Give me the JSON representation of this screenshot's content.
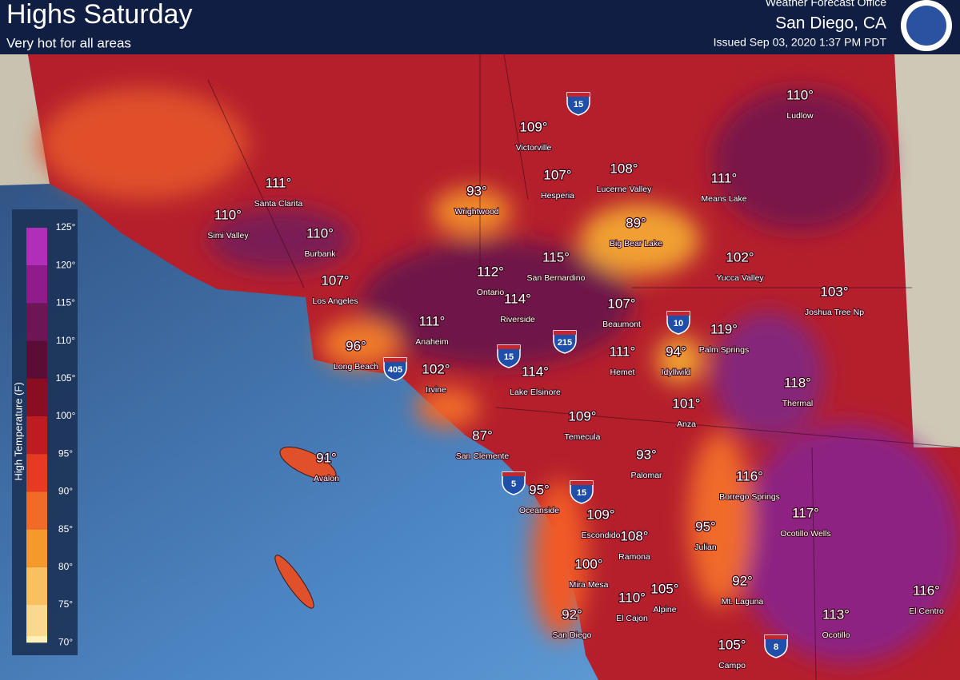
{
  "header": {
    "title": "Highs Saturday",
    "subtitle": "Very hot for all areas",
    "office": "Weather Forecast Office",
    "location": "San Diego, CA",
    "issued": "Issued Sep 03, 2020 1:37 PM PDT"
  },
  "legend": {
    "title": "High Temperature (F)",
    "labels": [
      "125°",
      "120°",
      "115°",
      "110°",
      "105°",
      "100°",
      "95°",
      "90°",
      "85°",
      "80°",
      "75°",
      "70°"
    ]
  },
  "cities": [
    {
      "temp": "110°",
      "name": "Ludlow"
    },
    {
      "temp": "109°",
      "name": "Victorville"
    },
    {
      "temp": "107°",
      "name": "Hesperia"
    },
    {
      "temp": "108°",
      "name": "Lucerne Valley"
    },
    {
      "temp": "111°",
      "name": "Means Lake"
    },
    {
      "temp": "111°",
      "name": "Santa Clarita"
    },
    {
      "temp": "110°",
      "name": "Simi Valley"
    },
    {
      "temp": "93°",
      "name": "Wrightwood"
    },
    {
      "temp": "89°",
      "name": "Big Bear Lake"
    },
    {
      "temp": "110°",
      "name": "Burbank"
    },
    {
      "temp": "115°",
      "name": "San Bernardino"
    },
    {
      "temp": "102°",
      "name": "Yucca Valley"
    },
    {
      "temp": "112°",
      "name": "Ontario"
    },
    {
      "temp": "107°",
      "name": "Los Angeles"
    },
    {
      "temp": "114°",
      "name": "Riverside"
    },
    {
      "temp": "103°",
      "name": "Joshua Tree Np"
    },
    {
      "temp": "107°",
      "name": "Beaumont"
    },
    {
      "temp": "119°",
      "name": "Palm Springs"
    },
    {
      "temp": "111°",
      "name": "Anaheim"
    },
    {
      "temp": "96°",
      "name": "Long Beach"
    },
    {
      "temp": "111°",
      "name": "Hemet"
    },
    {
      "temp": "94°",
      "name": "Idyllwild"
    },
    {
      "temp": "102°",
      "name": "Irvine"
    },
    {
      "temp": "114°",
      "name": "Lake Elsinore"
    },
    {
      "temp": "118°",
      "name": "Thermal"
    },
    {
      "temp": "101°",
      "name": "Anza"
    },
    {
      "temp": "109°",
      "name": "Temecula"
    },
    {
      "temp": "87°",
      "name": "San Clemente"
    },
    {
      "temp": "91°",
      "name": "Avalon"
    },
    {
      "temp": "93°",
      "name": "Palomar"
    },
    {
      "temp": "116°",
      "name": "Borrego Springs"
    },
    {
      "temp": "95°",
      "name": "Oceanside"
    },
    {
      "temp": "117°",
      "name": "Ocotillo Wells"
    },
    {
      "temp": "109°",
      "name": "Escondido"
    },
    {
      "temp": "108°",
      "name": "Ramona"
    },
    {
      "temp": "95°",
      "name": "Julian"
    },
    {
      "temp": "100°",
      "name": "Mira Mesa"
    },
    {
      "temp": "92°",
      "name": "Mt. Laguna"
    },
    {
      "temp": "105°",
      "name": "Alpine"
    },
    {
      "temp": "110°",
      "name": "El Cajon"
    },
    {
      "temp": "116°",
      "name": "El Centro"
    },
    {
      "temp": "92°",
      "name": "San Diego"
    },
    {
      "temp": "113°",
      "name": "Ocotillo"
    },
    {
      "temp": "105°",
      "name": "Campo"
    }
  ],
  "highways": [
    "15",
    "15",
    "215",
    "405",
    "10",
    "5",
    "15",
    "8"
  ]
}
